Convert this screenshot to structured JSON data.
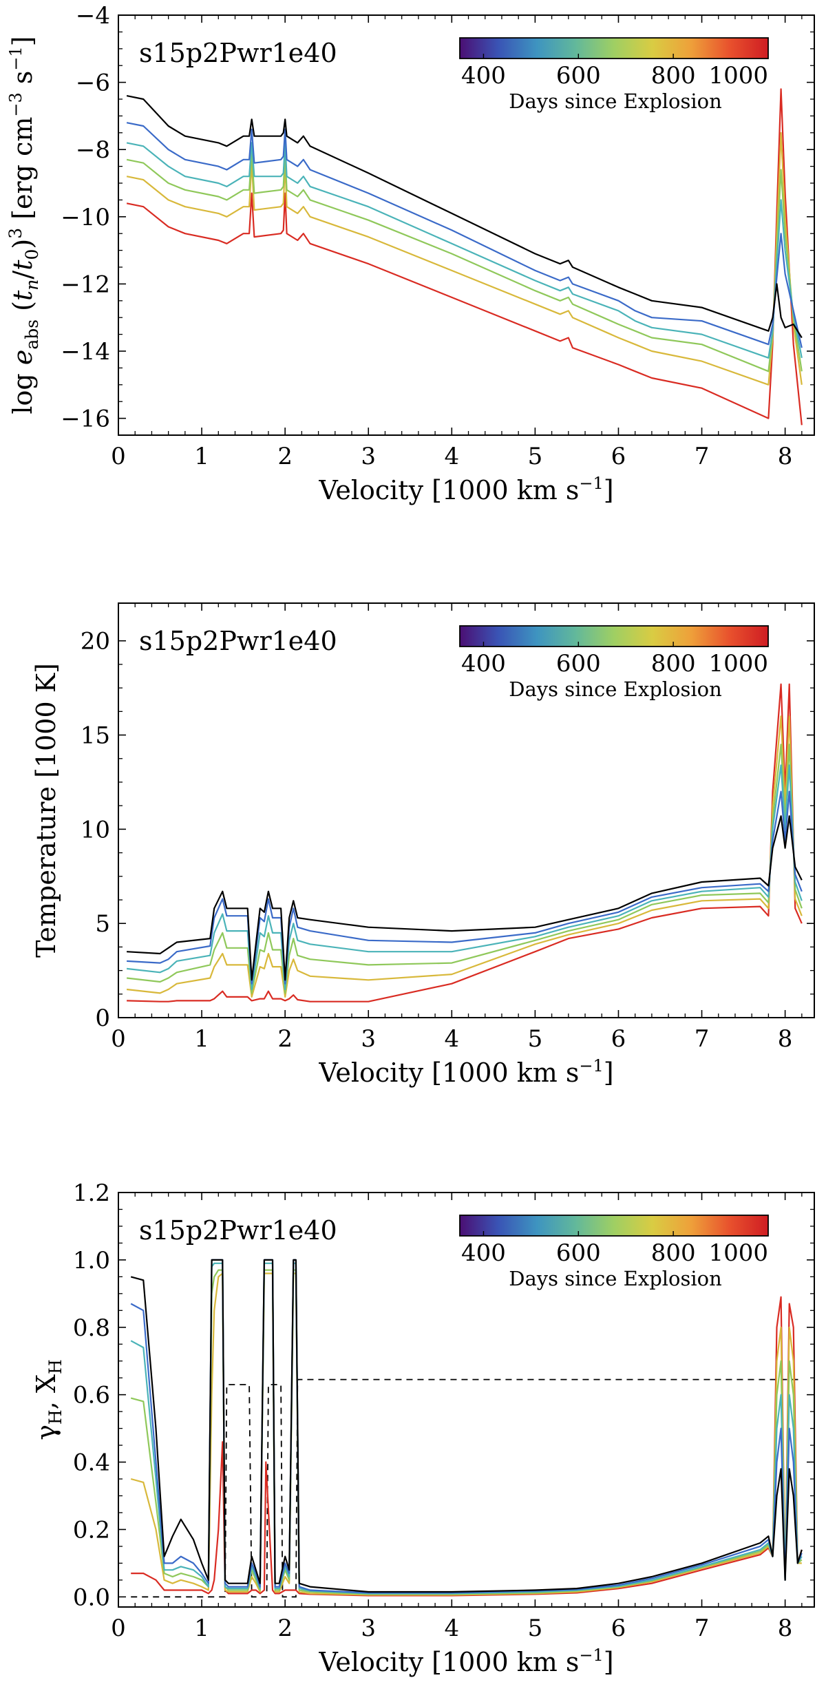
{
  "colorbar": {
    "colormap": [
      "#4b0f73",
      "#3a54b5",
      "#3e94c0",
      "#62b89b",
      "#9fcf63",
      "#d9cc43",
      "#eea03a",
      "#e8512d",
      "#cf1d23"
    ],
    "ticks": [
      "400",
      "600",
      "800",
      "1000"
    ],
    "label": "Days since Explosion"
  },
  "chart_data": [
    {
      "type": "line",
      "model_label": "s15p2Pwr1e40",
      "xlabel": "Velocity [1000 km s^-1]",
      "ylabel": "log e_abs (t_n/t_0)^3 [erg cm^-3 s^-1]",
      "xlim": [
        0,
        8.35
      ],
      "ylim": [
        -16.5,
        -4
      ],
      "xticks": [
        "0",
        "1",
        "2",
        "3",
        "4",
        "5",
        "6",
        "7",
        "8"
      ],
      "yticks": [
        "−4",
        "−6",
        "−8",
        "−10",
        "−12",
        "−14",
        "−16"
      ],
      "x": [
        0.1,
        0.3,
        0.6,
        0.8,
        1.2,
        1.3,
        1.5,
        1.57,
        1.6,
        1.63,
        1.95,
        1.98,
        2.0,
        2.02,
        2.15,
        2.22,
        2.3,
        3,
        4,
        5,
        5.3,
        5.4,
        5.45,
        6,
        6.2,
        6.4,
        7,
        7.8,
        7.85,
        7.9,
        7.95,
        8.0,
        8.1,
        8.2
      ],
      "series": [
        {
          "name": "black",
          "color": "#000000",
          "values": [
            -6.4,
            -6.5,
            -7.3,
            -7.6,
            -7.8,
            -7.9,
            -7.6,
            -7.6,
            -7.1,
            -7.6,
            -7.6,
            -7.5,
            -7.1,
            -7.6,
            -7.8,
            -7.6,
            -7.9,
            -8.7,
            -9.9,
            -11.1,
            -11.4,
            -11.3,
            -11.5,
            -12.1,
            -12.3,
            -12.5,
            -12.7,
            -13.4,
            -13.0,
            -12.0,
            -13.0,
            -13.3,
            -13.2,
            -13.6
          ]
        },
        {
          "name": "blue",
          "color": "#3a6ac8",
          "values": [
            -7.2,
            -7.3,
            -8.0,
            -8.3,
            -8.5,
            -8.6,
            -8.3,
            -8.3,
            -7.4,
            -8.4,
            -8.3,
            -8.2,
            -7.4,
            -8.3,
            -8.5,
            -8.3,
            -8.6,
            -9.3,
            -10.4,
            -11.6,
            -11.9,
            -11.8,
            -12.0,
            -12.5,
            -12.8,
            -13.0,
            -13.1,
            -13.8,
            -13.2,
            -11.8,
            -10.5,
            -11.7,
            -12.8,
            -13.9
          ]
        },
        {
          "name": "teal",
          "color": "#4ab3b8",
          "values": [
            -7.8,
            -7.9,
            -8.5,
            -8.8,
            -9.0,
            -9.1,
            -8.8,
            -8.8,
            -7.8,
            -8.8,
            -8.8,
            -8.7,
            -7.8,
            -8.8,
            -9.0,
            -8.8,
            -9.1,
            -9.7,
            -10.8,
            -11.9,
            -12.2,
            -12.1,
            -12.3,
            -12.8,
            -13.1,
            -13.3,
            -13.5,
            -14.2,
            -13.4,
            -11.4,
            -9.5,
            -11.0,
            -12.9,
            -14.2
          ]
        },
        {
          "name": "green",
          "color": "#8fc85a",
          "values": [
            -8.3,
            -8.4,
            -9.0,
            -9.2,
            -9.4,
            -9.5,
            -9.2,
            -9.2,
            -8.1,
            -9.3,
            -9.2,
            -9.1,
            -8.1,
            -9.2,
            -9.4,
            -9.2,
            -9.5,
            -10.1,
            -11.1,
            -12.2,
            -12.5,
            -12.4,
            -12.6,
            -13.2,
            -13.4,
            -13.6,
            -13.8,
            -14.6,
            -13.5,
            -11.0,
            -8.6,
            -10.5,
            -13.0,
            -14.6
          ]
        },
        {
          "name": "yellow",
          "color": "#d8b83a",
          "values": [
            -8.8,
            -8.9,
            -9.5,
            -9.7,
            -9.9,
            -10.0,
            -9.7,
            -9.7,
            -8.4,
            -9.8,
            -9.7,
            -9.6,
            -8.4,
            -9.7,
            -9.9,
            -9.7,
            -10.0,
            -10.6,
            -11.6,
            -12.6,
            -12.9,
            -12.8,
            -13.0,
            -13.6,
            -13.8,
            -14.0,
            -14.3,
            -15.0,
            -13.6,
            -10.5,
            -7.5,
            -10.0,
            -13.2,
            -15.0
          ]
        },
        {
          "name": "red",
          "color": "#d92b22",
          "values": [
            -9.6,
            -9.7,
            -10.3,
            -10.5,
            -10.7,
            -10.8,
            -10.5,
            -10.5,
            -9.3,
            -10.6,
            -10.5,
            -10.4,
            -9.3,
            -10.5,
            -10.7,
            -10.5,
            -10.8,
            -11.4,
            -12.4,
            -13.4,
            -13.7,
            -13.6,
            -13.9,
            -14.4,
            -14.6,
            -14.8,
            -15.1,
            -16.0,
            -13.8,
            -9.9,
            -6.2,
            -9.3,
            -13.8,
            -16.2
          ]
        }
      ]
    },
    {
      "type": "line",
      "model_label": "s15p2Pwr1e40",
      "xlabel": "Velocity [1000 km s^-1]",
      "ylabel": "Temperature [1000 K]",
      "xlim": [
        0,
        8.35
      ],
      "ylim": [
        0,
        22
      ],
      "xticks": [
        "0",
        "1",
        "2",
        "3",
        "4",
        "5",
        "6",
        "7",
        "8"
      ],
      "yticks": [
        "0",
        "5",
        "10",
        "15",
        "20"
      ],
      "x": [
        0.1,
        0.5,
        0.6,
        0.7,
        1.1,
        1.15,
        1.25,
        1.3,
        1.55,
        1.6,
        1.7,
        1.75,
        1.8,
        1.85,
        1.95,
        2.0,
        2.05,
        2.1,
        2.15,
        2.3,
        3,
        4,
        5,
        5.4,
        6,
        6.4,
        7,
        7.7,
        7.8,
        7.85,
        7.95,
        8.0,
        8.05,
        8.12,
        8.2
      ],
      "series": [
        {
          "name": "black",
          "color": "#000000",
          "values": [
            3.5,
            3.4,
            3.7,
            4.0,
            4.2,
            5.8,
            6.7,
            5.8,
            5.8,
            2.0,
            5.8,
            5.6,
            6.7,
            5.8,
            5.8,
            2.0,
            5.3,
            6.2,
            5.3,
            5.2,
            4.8,
            4.6,
            4.8,
            5.2,
            5.8,
            6.6,
            7.2,
            7.4,
            7.0,
            9.0,
            10.7,
            9.0,
            10.7,
            8.0,
            7.3
          ]
        },
        {
          "name": "blue",
          "color": "#3a6ac8",
          "values": [
            3.0,
            2.9,
            3.1,
            3.5,
            3.8,
            5.3,
            6.3,
            5.4,
            5.4,
            1.8,
            5.3,
            5.1,
            6.3,
            5.3,
            5.3,
            1.8,
            4.8,
            5.8,
            4.8,
            4.6,
            4.1,
            4.0,
            4.5,
            5.0,
            5.6,
            6.4,
            6.9,
            7.1,
            6.7,
            9.4,
            12.0,
            9.4,
            12.0,
            7.6,
            6.7
          ]
        },
        {
          "name": "teal",
          "color": "#4ab3b8",
          "values": [
            2.6,
            2.4,
            2.6,
            3.0,
            3.3,
            4.5,
            5.5,
            4.6,
            4.6,
            1.5,
            4.5,
            4.3,
            5.4,
            4.5,
            4.5,
            1.5,
            4.1,
            5.0,
            4.1,
            3.9,
            3.5,
            3.5,
            4.3,
            4.8,
            5.4,
            6.2,
            6.7,
            6.9,
            6.4,
            10.0,
            13.4,
            10.0,
            13.4,
            7.2,
            6.2
          ]
        },
        {
          "name": "green",
          "color": "#8fc85a",
          "values": [
            2.1,
            1.9,
            2.1,
            2.4,
            2.8,
            3.6,
            4.5,
            3.7,
            3.7,
            1.3,
            3.6,
            3.5,
            4.5,
            3.6,
            3.6,
            1.3,
            3.3,
            4.2,
            3.3,
            3.1,
            2.8,
            2.9,
            4.1,
            4.6,
            5.2,
            6.0,
            6.5,
            6.6,
            6.1,
            10.5,
            14.5,
            10.5,
            14.5,
            6.8,
            5.8
          ]
        },
        {
          "name": "yellow",
          "color": "#d8b83a",
          "values": [
            1.5,
            1.3,
            1.5,
            1.8,
            2.1,
            2.7,
            3.4,
            2.8,
            2.8,
            1.1,
            2.7,
            2.6,
            3.4,
            2.7,
            2.7,
            1.1,
            2.5,
            3.1,
            2.5,
            2.2,
            2.0,
            2.3,
            3.9,
            4.4,
            5.0,
            5.7,
            6.2,
            6.3,
            5.8,
            11.2,
            16.0,
            11.2,
            16.0,
            6.3,
            5.4
          ]
        },
        {
          "name": "red",
          "color": "#d92b22",
          "values": [
            0.9,
            0.85,
            0.85,
            0.9,
            0.9,
            1.0,
            1.4,
            1.1,
            1.1,
            0.9,
            1.0,
            1.0,
            1.4,
            1.0,
            1.0,
            0.9,
            1.0,
            1.2,
            0.95,
            0.85,
            0.85,
            1.8,
            3.5,
            4.2,
            4.7,
            5.3,
            5.8,
            5.9,
            5.4,
            12.0,
            17.7,
            12.0,
            17.7,
            5.8,
            5.0
          ]
        }
      ]
    },
    {
      "type": "line",
      "model_label": "s15p2Pwr1e40",
      "xlabel": "Velocity [1000 km s^-1]",
      "ylabel": "γH, XH",
      "xlim": [
        0,
        8.35
      ],
      "ylim": [
        -0.03,
        1.2
      ],
      "xticks": [
        "0",
        "1",
        "2",
        "3",
        "4",
        "5",
        "6",
        "7",
        "8"
      ],
      "yticks": [
        "0.0",
        "0.2",
        "0.4",
        "0.6",
        "0.8",
        "1.0",
        "1.2"
      ],
      "x": [
        0.15,
        0.3,
        0.45,
        0.55,
        0.65,
        0.75,
        0.9,
        1.0,
        1.08,
        1.12,
        1.15,
        1.2,
        1.25,
        1.28,
        1.32,
        1.4,
        1.55,
        1.6,
        1.65,
        1.7,
        1.75,
        1.77,
        1.85,
        1.88,
        1.93,
        2.0,
        2.05,
        2.1,
        2.13,
        2.17,
        2.3,
        3,
        4,
        5,
        5.5,
        6,
        6.4,
        7,
        7.7,
        7.8,
        7.85,
        7.9,
        7.95,
        8.0,
        8.05,
        8.1,
        8.15,
        8.2
      ],
      "series": [
        {
          "name": "black",
          "color": "#000000",
          "values": [
            0.95,
            0.94,
            0.5,
            0.12,
            0.18,
            0.23,
            0.17,
            0.1,
            0.05,
            1.0,
            1.0,
            1.0,
            1.0,
            0.05,
            0.04,
            0.04,
            0.04,
            0.12,
            0.08,
            0.04,
            1.0,
            1.0,
            1.0,
            0.04,
            0.04,
            0.12,
            0.08,
            1.0,
            1.0,
            0.04,
            0.03,
            0.015,
            0.015,
            0.02,
            0.025,
            0.04,
            0.06,
            0.1,
            0.16,
            0.18,
            0.12,
            0.3,
            0.38,
            0.05,
            0.38,
            0.3,
            0.1,
            0.14
          ]
        },
        {
          "name": "blue",
          "color": "#3a6ac8",
          "values": [
            0.87,
            0.85,
            0.4,
            0.1,
            0.1,
            0.12,
            0.1,
            0.07,
            0.04,
            1.0,
            1.0,
            1.0,
            1.0,
            0.04,
            0.03,
            0.03,
            0.03,
            0.1,
            0.07,
            0.03,
            1.0,
            1.0,
            1.0,
            0.03,
            0.03,
            0.1,
            0.07,
            1.0,
            1.0,
            0.03,
            0.02,
            0.012,
            0.012,
            0.018,
            0.022,
            0.035,
            0.055,
            0.095,
            0.15,
            0.17,
            0.12,
            0.4,
            0.5,
            0.05,
            0.5,
            0.4,
            0.1,
            0.13
          ]
        },
        {
          "name": "teal",
          "color": "#4ab3b8",
          "values": [
            0.76,
            0.74,
            0.35,
            0.08,
            0.08,
            0.09,
            0.08,
            0.06,
            0.03,
            0.98,
            0.99,
            0.99,
            0.99,
            0.03,
            0.025,
            0.025,
            0.025,
            0.09,
            0.06,
            0.025,
            0.99,
            0.99,
            0.99,
            0.025,
            0.025,
            0.09,
            0.06,
            0.99,
            0.99,
            0.025,
            0.018,
            0.01,
            0.01,
            0.015,
            0.02,
            0.032,
            0.05,
            0.09,
            0.14,
            0.16,
            0.12,
            0.5,
            0.6,
            0.05,
            0.6,
            0.5,
            0.1,
            0.12
          ]
        },
        {
          "name": "green",
          "color": "#8fc85a",
          "values": [
            0.59,
            0.58,
            0.28,
            0.07,
            0.06,
            0.07,
            0.06,
            0.05,
            0.03,
            0.9,
            0.95,
            0.97,
            0.97,
            0.03,
            0.02,
            0.02,
            0.02,
            0.08,
            0.05,
            0.02,
            0.97,
            0.97,
            0.97,
            0.02,
            0.02,
            0.08,
            0.05,
            0.97,
            0.97,
            0.02,
            0.015,
            0.008,
            0.008,
            0.012,
            0.018,
            0.03,
            0.048,
            0.088,
            0.135,
            0.155,
            0.12,
            0.6,
            0.7,
            0.05,
            0.7,
            0.6,
            0.1,
            0.11
          ]
        },
        {
          "name": "yellow",
          "color": "#d8b83a",
          "values": [
            0.35,
            0.34,
            0.2,
            0.05,
            0.04,
            0.05,
            0.04,
            0.03,
            0.02,
            0.6,
            0.85,
            0.95,
            0.96,
            0.02,
            0.015,
            0.015,
            0.015,
            0.06,
            0.04,
            0.015,
            0.96,
            0.96,
            0.96,
            0.015,
            0.015,
            0.06,
            0.04,
            0.96,
            0.96,
            0.015,
            0.01,
            0.006,
            0.006,
            0.01,
            0.015,
            0.028,
            0.045,
            0.085,
            0.13,
            0.15,
            0.12,
            0.7,
            0.8,
            0.05,
            0.8,
            0.7,
            0.1,
            0.1
          ]
        },
        {
          "name": "red",
          "color": "#d92b22",
          "values": [
            0.07,
            0.07,
            0.05,
            0.02,
            0.02,
            0.02,
            0.02,
            0.02,
            0.01,
            0.02,
            0.05,
            0.2,
            0.46,
            0.02,
            0.01,
            0.01,
            0.01,
            0.02,
            0.02,
            0.01,
            0.02,
            0.4,
            0.02,
            0.01,
            0.01,
            0.02,
            0.02,
            0.02,
            0.02,
            0.01,
            0.008,
            0.004,
            0.004,
            0.008,
            0.012,
            0.025,
            0.04,
            0.08,
            0.125,
            0.145,
            0.12,
            0.8,
            0.89,
            0.05,
            0.87,
            0.8,
            0.1,
            0.14
          ]
        }
      ],
      "dashed_series": {
        "name": "XH",
        "color": "#000000",
        "x": [
          0.15,
          1.28,
          1.3,
          1.57,
          1.6,
          1.78,
          1.8,
          1.95,
          1.97,
          2.13,
          2.15,
          8.2
        ],
        "values": [
          0.0,
          0.0,
          0.63,
          0.63,
          0.0,
          0.0,
          0.63,
          0.63,
          0.0,
          0.0,
          0.645,
          0.645
        ]
      }
    }
  ]
}
